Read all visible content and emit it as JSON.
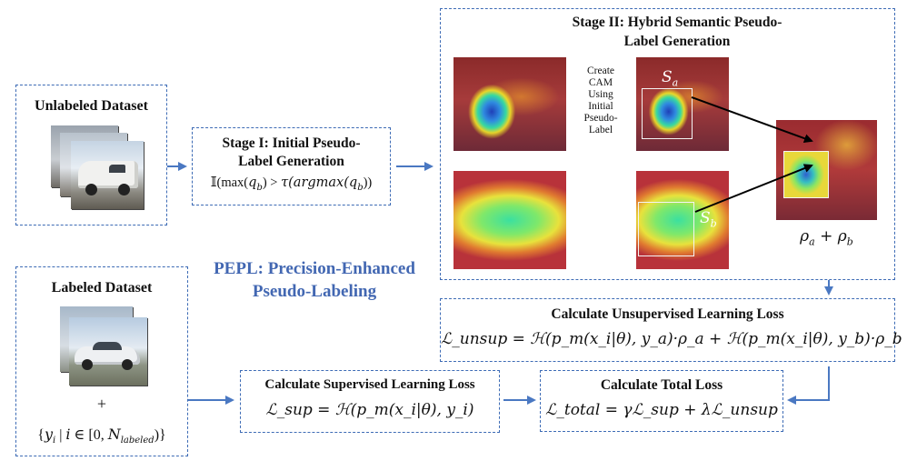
{
  "unlabeled": {
    "title": "Unlabeled Dataset"
  },
  "labeled": {
    "title": "Labeled Dataset",
    "plus": "+",
    "set_expr": "{yᵢ | i ∈ [0, Nₗₐᵦₑₗₑₔ)}"
  },
  "labeled_set": {
    "pre": "{",
    "y": "y",
    "i": "i",
    "bar": " | ",
    "i2": "i",
    "in": " ∈ [0, ",
    "N": "N",
    "sub": "labeled",
    "post": ")}"
  },
  "stage1": {
    "title_line1": "Stage I: Initial Pseudo-",
    "title_line2": "Label Generation",
    "formula": "𝕀(max(q♭) > τ(argmax(q♭))"
  },
  "stage1_formula": {
    "ind": "𝕀",
    "open": "(max(",
    "q": "q",
    "qsub": "b",
    "mid": ") > ",
    "tau": "τ",
    "arg": "(argmax(",
    "q2": "q",
    "qsub2": "b",
    "close": "))"
  },
  "stage2": {
    "title_line1": "Stage II: Hybrid Semantic Pseudo-",
    "title_line2": "Label Generation",
    "cam_note": [
      "Create",
      "CAM",
      "Using",
      "Initial",
      "Pseudo-",
      "Label"
    ],
    "sa": "S",
    "sa_sub": "a",
    "sb": "S",
    "sb_sub": "b",
    "rho": {
      "a": "ρ",
      "a_sub": "a",
      "plus": " + ",
      "b": "ρ",
      "b_sub": "b"
    }
  },
  "pepl": {
    "line1": "PEPL: Precision-Enhanced",
    "line2": "Pseudo-Labeling",
    "color": "#4267b2"
  },
  "sup_loss": {
    "title": "Calculate Supervised Learning Loss",
    "formula": "ℒ_sup = ℋ(p_m(x_i|θ), y_i)"
  },
  "unsup_loss": {
    "title": "Calculate Unsupervised Learning Loss",
    "formula": "ℒ_unsup = ℋ(p_m(x_i|θ), y_a)·ρ_a + ℋ(p_m(x_i|θ), y_b)·ρ_b"
  },
  "total_loss": {
    "title": "Calculate Total Loss",
    "formula": "ℒ_total = γℒ_sup + λℒ_unsup"
  },
  "colors": {
    "border": "#3d6bb5",
    "arrow": "#4a78c2"
  }
}
